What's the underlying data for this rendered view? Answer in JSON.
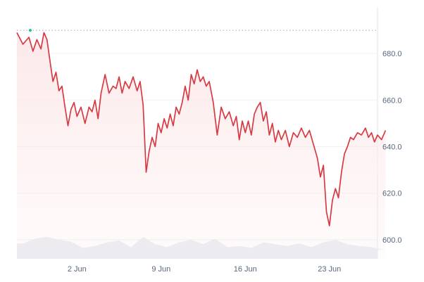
{
  "chart_data": {
    "type": "area",
    "title": "",
    "xlabel": "",
    "ylabel": "",
    "ylim": [
      590,
      700
    ],
    "xlim": [
      "2025-05-28",
      "2025-06-27"
    ],
    "x_ticks": [
      {
        "date": "2025-06-02",
        "label": "2 Jun"
      },
      {
        "date": "2025-06-09",
        "label": "9 Jun"
      },
      {
        "date": "2025-06-16",
        "label": "16 Jun"
      },
      {
        "date": "2025-06-23",
        "label": "23 Jun"
      }
    ],
    "y_ticks": [
      {
        "value": 600,
        "label": "600.0"
      },
      {
        "value": 620,
        "label": "620.0"
      },
      {
        "value": 640,
        "label": "640.0"
      },
      {
        "value": 660,
        "label": "660.0"
      },
      {
        "value": 680,
        "label": "680.0"
      }
    ],
    "reference_line": {
      "value": 690,
      "style": "dotted"
    },
    "grid": {
      "horizontal": true,
      "vertical": false
    },
    "legend": "none",
    "colors": {
      "line": "#d83a43",
      "fill": "#fce8e9",
      "grid": "#eef0f3",
      "reference": "#9aa3b0",
      "volume": "#e9ecf1",
      "start_marker": "#16c784"
    },
    "series": [
      {
        "values": [
          [
            "2025-05-28",
            689
          ],
          [
            "2025-05-28",
            684
          ],
          [
            "2025-05-29",
            687
          ],
          [
            "2025-05-29",
            681
          ],
          [
            "2025-05-29",
            686
          ],
          [
            "2025-05-30",
            682
          ],
          [
            "2025-05-30",
            689
          ],
          [
            "2025-05-30",
            686
          ],
          [
            "2025-05-30",
            677
          ],
          [
            "2025-05-31",
            668
          ],
          [
            "2025-05-31",
            672
          ],
          [
            "2025-05-31",
            664
          ],
          [
            "2025-05-31",
            666
          ],
          [
            "2025-06-01",
            657
          ],
          [
            "2025-06-01",
            649
          ],
          [
            "2025-06-01",
            656
          ],
          [
            "2025-06-01",
            659
          ],
          [
            "2025-06-02",
            653
          ],
          [
            "2025-06-02",
            657
          ],
          [
            "2025-06-02",
            650
          ],
          [
            "2025-06-03",
            657
          ],
          [
            "2025-06-03",
            655
          ],
          [
            "2025-06-03",
            660
          ],
          [
            "2025-06-03",
            652
          ],
          [
            "2025-06-04",
            663
          ],
          [
            "2025-06-04",
            671
          ],
          [
            "2025-06-04",
            663
          ],
          [
            "2025-06-05",
            666
          ],
          [
            "2025-06-05",
            665
          ],
          [
            "2025-06-05",
            670
          ],
          [
            "2025-06-05",
            663
          ],
          [
            "2025-06-06",
            668
          ],
          [
            "2025-06-06",
            665
          ],
          [
            "2025-06-06",
            670
          ],
          [
            "2025-06-07",
            664
          ],
          [
            "2025-06-07",
            668
          ],
          [
            "2025-06-07",
            658
          ],
          [
            "2025-06-07",
            629
          ],
          [
            "2025-06-08",
            638
          ],
          [
            "2025-06-08",
            644
          ],
          [
            "2025-06-08",
            640
          ],
          [
            "2025-06-08",
            650
          ],
          [
            "2025-06-09",
            646
          ],
          [
            "2025-06-09",
            652
          ],
          [
            "2025-06-09",
            648
          ],
          [
            "2025-06-09",
            654
          ],
          [
            "2025-06-10",
            649
          ],
          [
            "2025-06-10",
            657
          ],
          [
            "2025-06-10",
            654
          ],
          [
            "2025-06-10",
            659
          ],
          [
            "2025-06-11",
            666
          ],
          [
            "2025-06-11",
            660
          ],
          [
            "2025-06-11",
            671
          ],
          [
            "2025-06-11",
            667
          ],
          [
            "2025-06-12",
            673
          ],
          [
            "2025-06-12",
            668
          ],
          [
            "2025-06-12",
            670
          ],
          [
            "2025-06-12",
            666
          ],
          [
            "2025-06-13",
            668
          ],
          [
            "2025-06-13",
            659
          ],
          [
            "2025-06-13",
            645
          ],
          [
            "2025-06-14",
            657
          ],
          [
            "2025-06-14",
            652
          ],
          [
            "2025-06-14",
            655
          ],
          [
            "2025-06-15",
            649
          ],
          [
            "2025-06-15",
            653
          ],
          [
            "2025-06-15",
            643
          ],
          [
            "2025-06-15",
            651
          ],
          [
            "2025-06-16",
            646
          ],
          [
            "2025-06-16",
            651
          ],
          [
            "2025-06-16",
            645
          ],
          [
            "2025-06-16",
            654
          ],
          [
            "2025-06-17",
            657
          ],
          [
            "2025-06-17",
            659
          ],
          [
            "2025-06-17",
            651
          ],
          [
            "2025-06-17",
            655
          ],
          [
            "2025-06-18",
            645
          ],
          [
            "2025-06-18",
            650
          ],
          [
            "2025-06-18",
            642
          ],
          [
            "2025-06-18",
            647
          ],
          [
            "2025-06-19",
            643
          ],
          [
            "2025-06-19",
            647
          ],
          [
            "2025-06-19",
            640
          ],
          [
            "2025-06-20",
            646
          ],
          [
            "2025-06-20",
            644
          ],
          [
            "2025-06-20",
            648
          ],
          [
            "2025-06-21",
            644
          ],
          [
            "2025-06-21",
            647
          ],
          [
            "2025-06-21",
            641
          ],
          [
            "2025-06-22",
            635
          ],
          [
            "2025-06-22",
            627
          ],
          [
            "2025-06-22",
            632
          ],
          [
            "2025-06-22",
            612
          ],
          [
            "2025-06-23",
            606
          ],
          [
            "2025-06-23",
            617
          ],
          [
            "2025-06-23",
            622
          ],
          [
            "2025-06-23",
            618
          ],
          [
            "2025-06-24",
            629
          ],
          [
            "2025-06-24",
            637
          ],
          [
            "2025-06-24",
            640
          ],
          [
            "2025-06-24",
            644
          ],
          [
            "2025-06-25",
            643
          ],
          [
            "2025-06-25",
            646
          ],
          [
            "2025-06-25",
            645
          ],
          [
            "2025-06-26",
            648
          ],
          [
            "2025-06-26",
            644
          ],
          [
            "2025-06-26",
            646
          ],
          [
            "2025-06-26",
            642
          ],
          [
            "2025-06-27",
            645
          ],
          [
            "2025-06-27",
            643
          ],
          [
            "2025-06-27",
            647
          ]
        ]
      }
    ],
    "volume": [
      [
        "2025-05-28",
        0.42
      ],
      [
        "2025-05-29",
        0.55
      ],
      [
        "2025-05-30",
        0.6
      ],
      [
        "2025-05-31",
        0.52
      ],
      [
        "2025-06-01",
        0.47
      ],
      [
        "2025-06-02",
        0.3
      ],
      [
        "2025-06-03",
        0.35
      ],
      [
        "2025-06-04",
        0.45
      ],
      [
        "2025-06-05",
        0.5
      ],
      [
        "2025-06-06",
        0.32
      ],
      [
        "2025-06-07",
        0.6
      ],
      [
        "2025-06-08",
        0.4
      ],
      [
        "2025-06-09",
        0.32
      ],
      [
        "2025-06-10",
        0.45
      ],
      [
        "2025-06-11",
        0.52
      ],
      [
        "2025-06-12",
        0.4
      ],
      [
        "2025-06-13",
        0.55
      ],
      [
        "2025-06-14",
        0.32
      ],
      [
        "2025-06-15",
        0.35
      ],
      [
        "2025-06-16",
        0.3
      ],
      [
        "2025-06-17",
        0.45
      ],
      [
        "2025-06-18",
        0.4
      ],
      [
        "2025-06-19",
        0.35
      ],
      [
        "2025-06-20",
        0.42
      ],
      [
        "2025-06-21",
        0.32
      ],
      [
        "2025-06-22",
        0.45
      ],
      [
        "2025-06-23",
        0.52
      ],
      [
        "2025-06-24",
        0.4
      ],
      [
        "2025-06-25",
        0.35
      ],
      [
        "2025-06-26",
        0.32
      ],
      [
        "2025-06-27",
        0.25
      ]
    ]
  }
}
